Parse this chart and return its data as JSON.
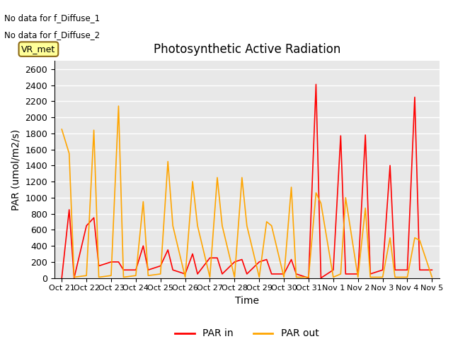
{
  "title": "Photosynthetic Active Radiation",
  "xlabel": "Time",
  "ylabel": "PAR (umol/m2/s)",
  "annotations": [
    "No data for f_Diffuse_1",
    "No data for f_Diffuse_2"
  ],
  "legend_label_box": "VR_met",
  "ylim": [
    0,
    2700
  ],
  "yticks": [
    0,
    200,
    400,
    600,
    800,
    1000,
    1200,
    1400,
    1600,
    1800,
    2000,
    2200,
    2400,
    2600
  ],
  "xtick_labels": [
    "Oct 21",
    "Oct 22",
    "Oct 23",
    "Oct 24",
    "Oct 25",
    "Oct 26",
    "Oct 27",
    "Oct 28",
    "Oct 29",
    "Oct 30",
    "Oct 31",
    "Nov 1",
    "Nov 2",
    "Nov 3",
    "Nov 4",
    "Nov 5"
  ],
  "par_in_x": [
    0,
    0.3,
    0.5,
    1.0,
    1.3,
    1.5,
    2.0,
    2.3,
    2.5,
    3.0,
    3.3,
    3.5,
    4.0,
    4.3,
    4.5,
    5.0,
    5.3,
    5.5,
    6.0,
    6.3,
    6.5,
    7.0,
    7.3,
    7.5,
    8.0,
    8.3,
    8.5,
    9.0,
    9.3,
    9.5,
    10.0,
    10.3,
    10.5,
    11.0,
    11.3,
    11.5,
    12.0,
    12.3,
    12.5,
    13.0,
    13.3,
    13.5,
    14.0,
    14.3,
    14.5,
    15.0
  ],
  "par_in_y": [
    0,
    850,
    0,
    650,
    750,
    150,
    200,
    200,
    100,
    100,
    400,
    100,
    150,
    350,
    100,
    50,
    300,
    50,
    250,
    250,
    50,
    200,
    230,
    50,
    200,
    230,
    50,
    50,
    230,
    50,
    0,
    2410,
    0,
    100,
    1770,
    50,
    50,
    1780,
    50,
    100,
    1400,
    100,
    100,
    2250,
    100,
    100
  ],
  "par_out_x": [
    0,
    0.3,
    0.5,
    1.0,
    1.3,
    1.5,
    2.0,
    2.3,
    2.5,
    3.0,
    3.3,
    3.5,
    4.0,
    4.3,
    4.5,
    5.0,
    5.3,
    5.5,
    6.0,
    6.3,
    6.5,
    7.0,
    7.3,
    7.5,
    8.0,
    8.3,
    8.5,
    9.0,
    9.3,
    9.5,
    10.0,
    10.3,
    10.5,
    11.0,
    11.3,
    11.5,
    12.0,
    12.3,
    12.5,
    13.0,
    13.3,
    13.5,
    14.0,
    14.3,
    14.5,
    15.0
  ],
  "par_out_y": [
    1850,
    1550,
    10,
    30,
    1840,
    10,
    30,
    2140,
    10,
    30,
    950,
    30,
    50,
    1450,
    650,
    10,
    1200,
    650,
    10,
    1250,
    650,
    10,
    1250,
    650,
    10,
    700,
    650,
    10,
    1130,
    10,
    10,
    1060,
    930,
    10,
    50,
    1000,
    10,
    870,
    10,
    10,
    500,
    10,
    10,
    500,
    470,
    10
  ],
  "par_in_color": "#ff0000",
  "par_out_color": "#ffa500",
  "background_color": "#e8e8e8",
  "grid_color": "#ffffff",
  "legend_entries": [
    "PAR in",
    "PAR out"
  ]
}
